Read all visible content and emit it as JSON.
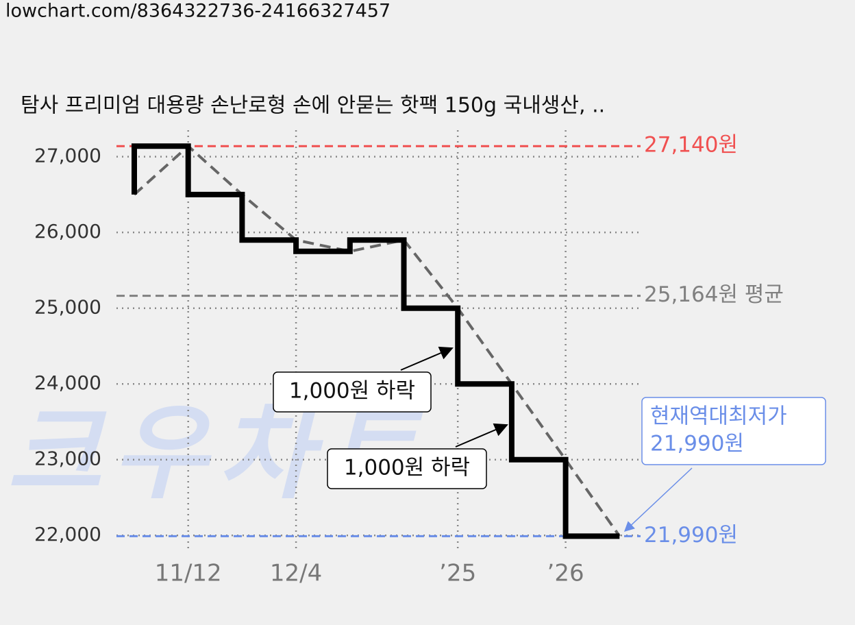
{
  "header": {
    "url": "lowchart.com/8364322736-24166327457"
  },
  "chart_data": {
    "type": "step-line",
    "title": "탐사 프리미엄 대용량 손난로형 손에 안묻는 핫팩 150g 국내생산, ..",
    "watermark": "크우차트",
    "categories": [
      null,
      "11/12",
      null,
      "12/4",
      null,
      null,
      "’25",
      null,
      "’26",
      null
    ],
    "values": [
      26500,
      27140,
      26500,
      25900,
      25750,
      25900,
      25000,
      24000,
      23000,
      21990
    ],
    "color": "#000000",
    "trend_line": true,
    "trend_color": "#666666",
    "ylim": [
      21830,
      27350
    ],
    "yticks": [
      {
        "value": 22000,
        "label": "22,000"
      },
      {
        "value": 23000,
        "label": "23,000"
      },
      {
        "value": 24000,
        "label": "24,000"
      },
      {
        "value": 25000,
        "label": "25,000"
      },
      {
        "value": 26000,
        "label": "26,000"
      },
      {
        "value": 27000,
        "label": "27,000"
      }
    ],
    "grid": true,
    "reference_lines": [
      {
        "value": 27140,
        "label": "27,140원",
        "color": "#f05050"
      },
      {
        "value": 25164,
        "label": "25,164원 평균",
        "color": "#808080"
      },
      {
        "value": 21990,
        "label": "21,990원",
        "color": "#6a8ee8"
      }
    ],
    "annotations": [
      {
        "lines": [
          "1,000원 하락"
        ]
      },
      {
        "lines": [
          "1,000원 하락"
        ]
      },
      {
        "lines": [
          "현재역대최저가",
          "21,990원"
        ],
        "color": "#6a8ee8"
      }
    ]
  }
}
